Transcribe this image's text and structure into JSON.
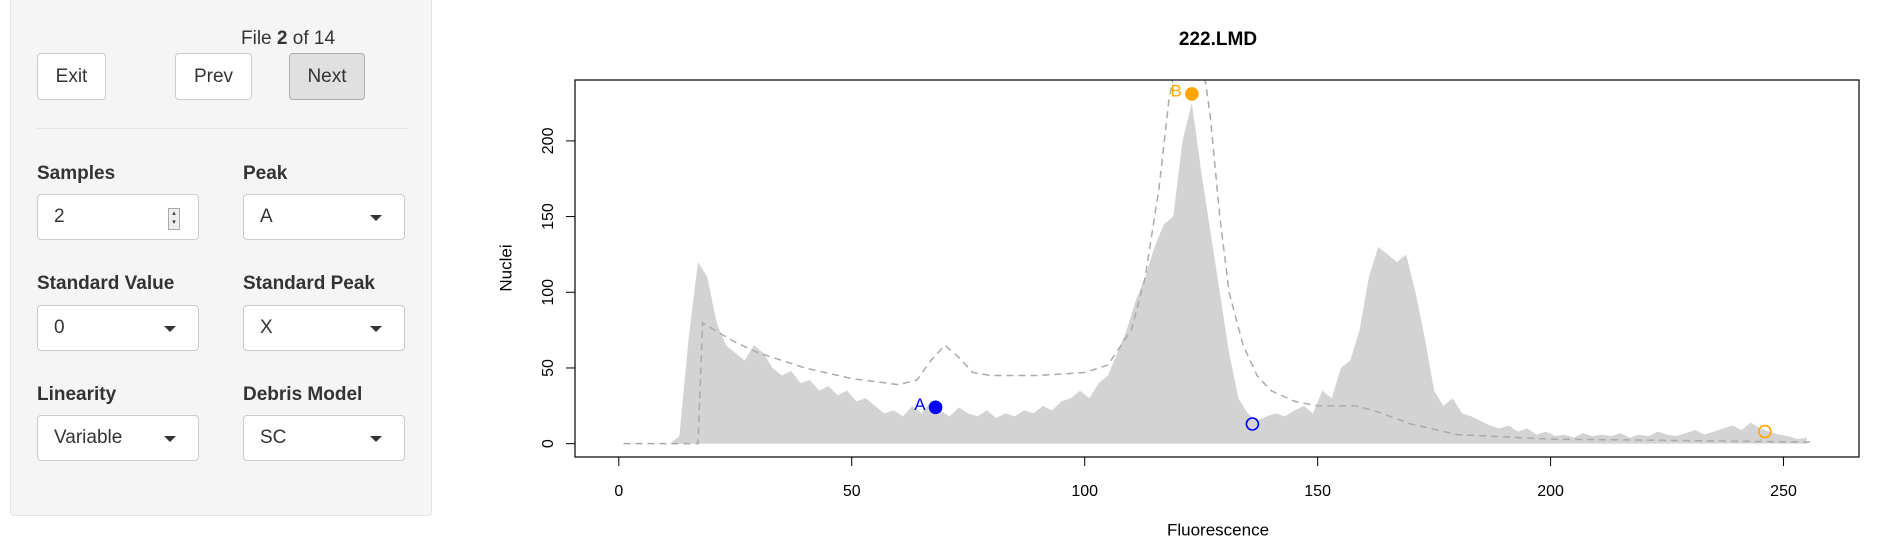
{
  "sidebar": {
    "file": {
      "prefix": "File",
      "current": 2,
      "separator": "of",
      "total": 14
    },
    "buttons": [
      "Exit",
      "Prev",
      "Next"
    ],
    "fields": [
      {
        "label": "Samples",
        "value": 2
      },
      {
        "label": "Peak",
        "value": "A"
      },
      {
        "label": "Standard Value",
        "value": 0
      },
      {
        "label": "Standard Peak",
        "value": "X"
      },
      {
        "label": "Linearity",
        "value": "Variable"
      },
      {
        "label": "Debris Model",
        "value": "SC"
      }
    ]
  },
  "chart_data": {
    "type": "area",
    "title": "222.LMD",
    "xlabel": "Fluorescence",
    "ylabel": "Nuclei",
    "xlim": [
      -9.4,
      266.2
    ],
    "ylim": [
      -8.8,
      240.2
    ],
    "xticks": [
      0,
      50,
      100,
      150,
      200,
      250
    ],
    "yticks": [
      0,
      50,
      100,
      150,
      200
    ],
    "histogram": {
      "color": "#d3d3d3",
      "x": [
        1,
        3,
        5,
        7,
        9,
        11,
        13,
        15,
        17,
        19,
        21,
        23,
        25,
        27,
        29,
        31,
        33,
        35,
        37,
        39,
        41,
        43,
        45,
        47,
        49,
        51,
        53,
        55,
        57,
        59,
        61,
        63,
        65,
        67,
        69,
        71,
        73,
        75,
        77,
        79,
        81,
        83,
        85,
        87,
        89,
        91,
        93,
        95,
        97,
        99,
        101,
        103,
        105,
        107,
        109,
        111,
        113,
        115,
        117,
        119,
        121,
        123,
        125,
        127,
        129,
        131,
        133,
        135,
        137,
        139,
        141,
        143,
        145,
        147,
        149,
        151,
        153,
        155,
        157,
        159,
        161,
        163,
        165,
        167,
        169,
        171,
        173,
        175,
        177,
        179,
        181,
        183,
        185,
        187,
        189,
        191,
        193,
        195,
        197,
        199,
        201,
        203,
        205,
        207,
        209,
        211,
        213,
        215,
        217,
        219,
        221,
        223,
        225,
        227,
        229,
        231,
        233,
        235,
        237,
        239,
        241,
        243,
        245,
        247,
        249,
        251,
        253,
        255
      ],
      "values": [
        0,
        0,
        0,
        0,
        0,
        0,
        5,
        70,
        120,
        110,
        80,
        65,
        60,
        55,
        65,
        60,
        50,
        45,
        48,
        40,
        42,
        35,
        38,
        32,
        35,
        28,
        30,
        25,
        20,
        22,
        18,
        25,
        20,
        28,
        22,
        18,
        24,
        20,
        18,
        22,
        17,
        20,
        18,
        22,
        20,
        25,
        22,
        28,
        30,
        35,
        30,
        40,
        45,
        60,
        75,
        95,
        110,
        130,
        145,
        150,
        200,
        225,
        180,
        140,
        100,
        60,
        30,
        20,
        15,
        18,
        20,
        18,
        22,
        25,
        20,
        35,
        30,
        50,
        55,
        75,
        110,
        130,
        125,
        120,
        125,
        100,
        70,
        35,
        25,
        30,
        20,
        18,
        15,
        12,
        10,
        12,
        8,
        10,
        6,
        8,
        5,
        6,
        4,
        7,
        5,
        6,
        5,
        7,
        4,
        6,
        5,
        8,
        6,
        5,
        7,
        9,
        6,
        8,
        10,
        12,
        9,
        14,
        10,
        8,
        6,
        5,
        3,
        4
      ]
    },
    "model": {
      "color": "#aaaaaa",
      "x": [
        1,
        17,
        18,
        20,
        25,
        30,
        40,
        50,
        60,
        64,
        67,
        70,
        73,
        76,
        80,
        90,
        100,
        105,
        110,
        113,
        116,
        118,
        120,
        125,
        127,
        129,
        131,
        134,
        137,
        140,
        145,
        150,
        158,
        162,
        170,
        180,
        200,
        230,
        256
      ],
      "values": [
        0,
        0,
        80,
        76,
        67,
        60,
        50,
        43,
        39,
        42,
        55,
        65,
        57,
        47,
        45,
        45,
        47,
        52,
        75,
        110,
        170,
        225,
        260,
        260,
        215,
        150,
        100,
        65,
        45,
        35,
        28,
        25,
        25,
        22,
        13,
        6,
        3,
        2,
        1
      ]
    },
    "points": [
      {
        "label": "A",
        "x": 68,
        "y": 24,
        "color": "#0000ff",
        "filled": true
      },
      {
        "label": "B",
        "x": 123,
        "y": 231,
        "color": "#ffa500",
        "filled": true
      },
      {
        "x": 136,
        "y": 13,
        "color": "#0000ff",
        "filled": false
      },
      {
        "x": 246,
        "y": 8,
        "color": "#ffa500",
        "filled": false
      }
    ]
  }
}
